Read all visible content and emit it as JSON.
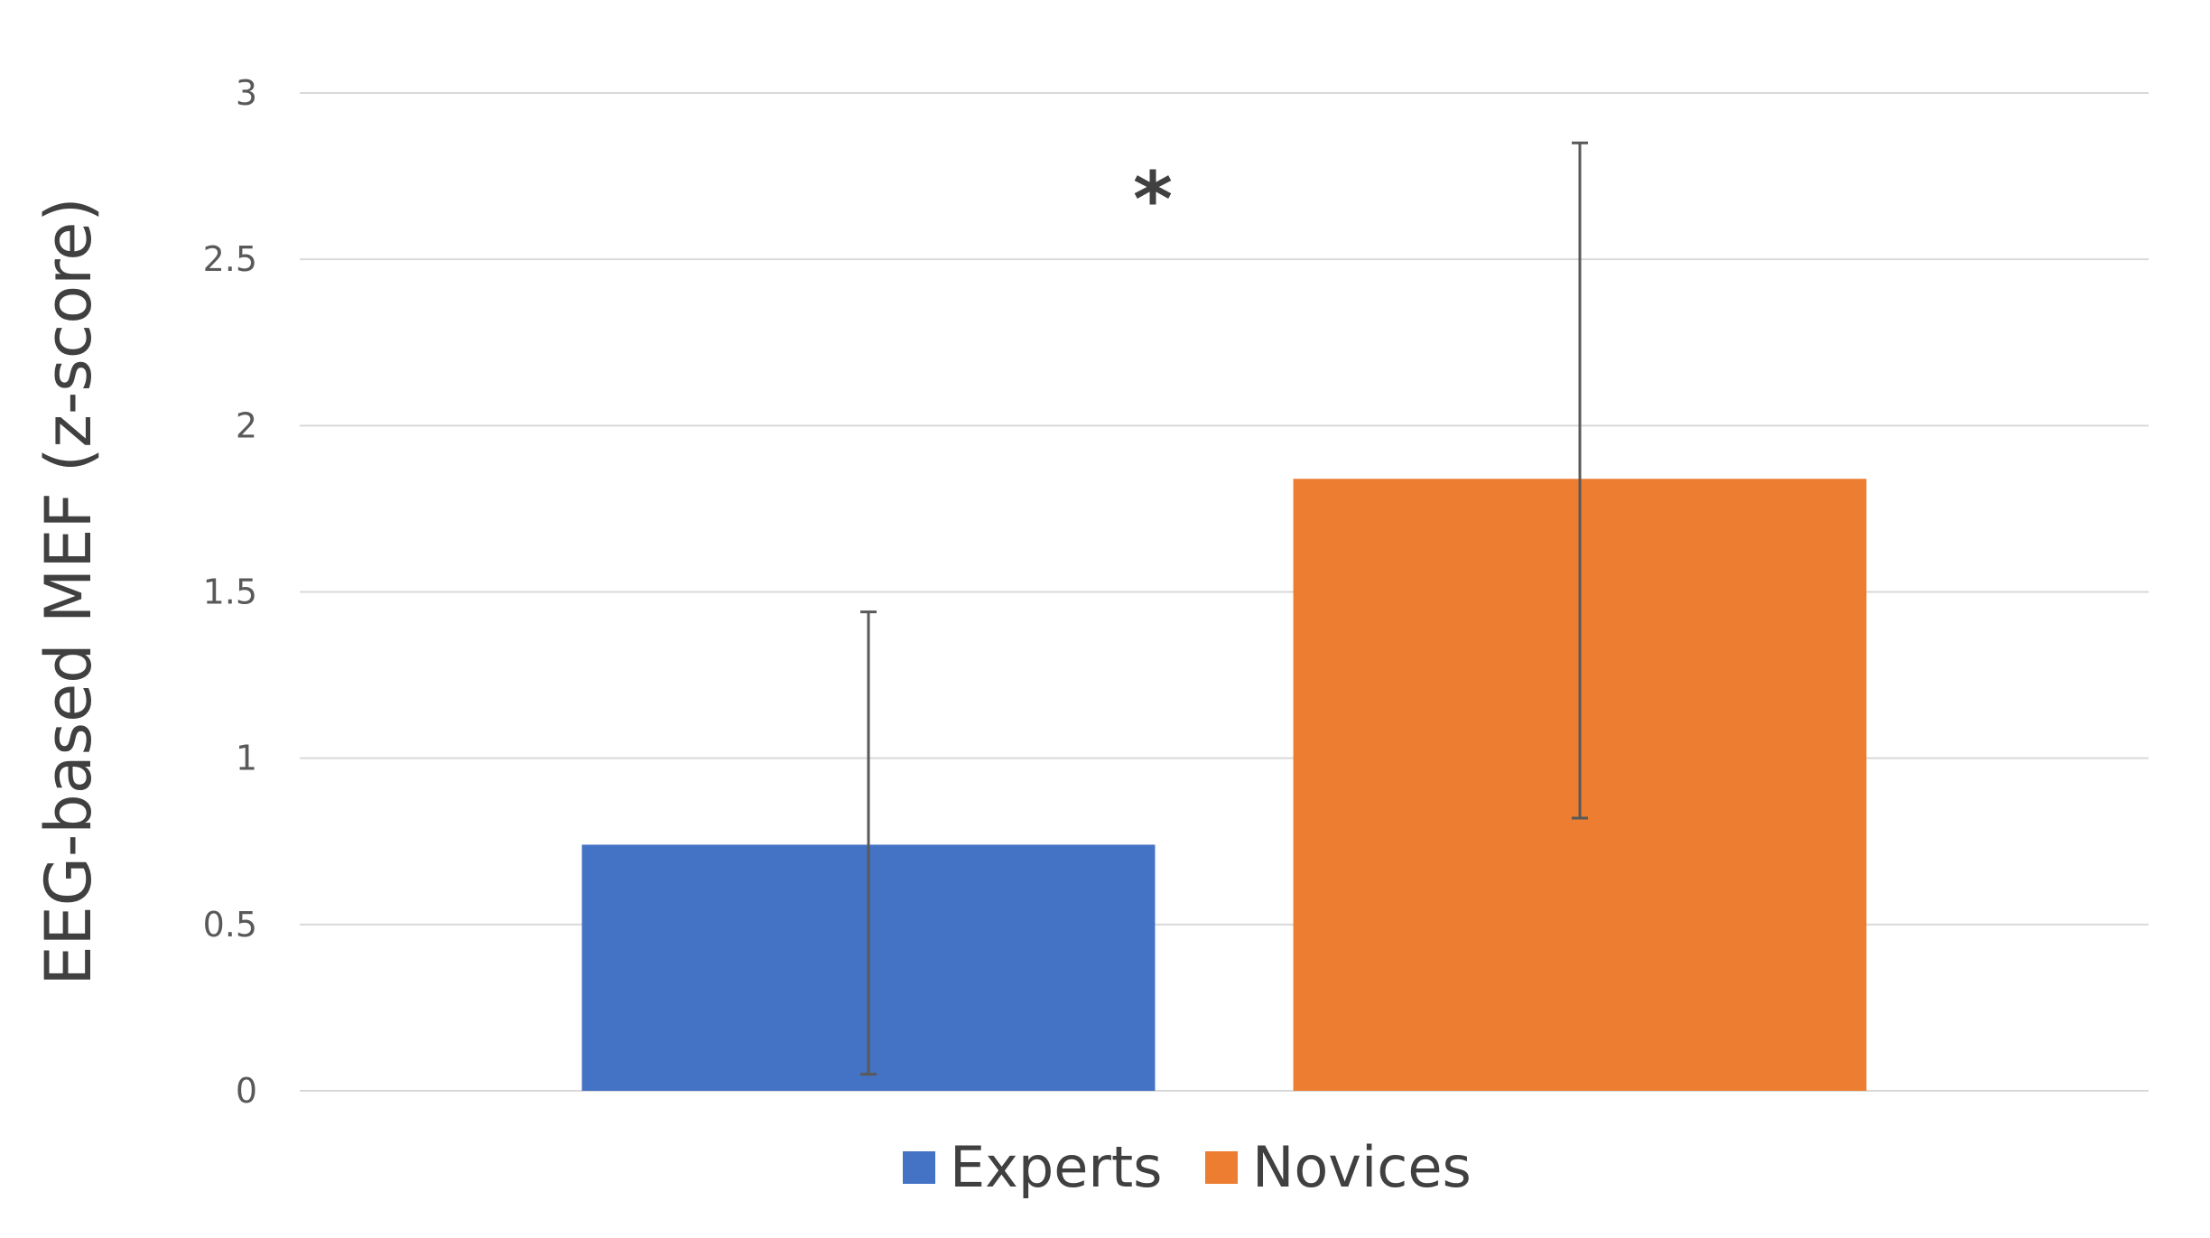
{
  "chart_data": {
    "type": "bar",
    "title": "",
    "xlabel": "",
    "ylabel": "EEG-based MEF (z-score)",
    "ylim": [
      0,
      3
    ],
    "yticks": [
      0,
      0.5,
      1,
      1.5,
      2,
      2.5,
      3
    ],
    "grid": true,
    "legend_placement": "bottom",
    "categories": [
      "Experts",
      "Novices"
    ],
    "series": [
      {
        "name": "Experts",
        "color": "#4472C4",
        "value": 0.74,
        "error_low": 0.05,
        "error_high": 1.44
      },
      {
        "name": "Novices",
        "color": "#ED7D31",
        "value": 1.84,
        "error_low": 0.82,
        "error_high": 2.85
      }
    ],
    "annotations": [
      {
        "text": "*"
      }
    ]
  }
}
